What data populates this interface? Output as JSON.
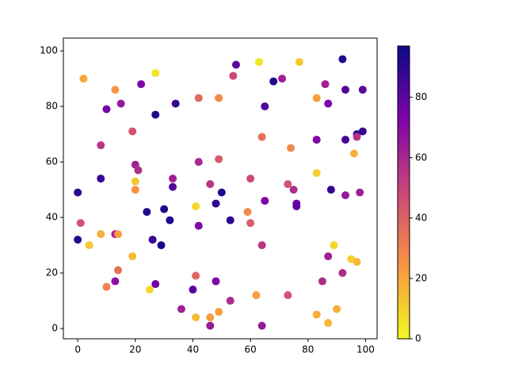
{
  "chart_data": {
    "type": "scatter",
    "x": [
      2,
      0,
      0,
      1,
      4,
      8,
      8,
      8,
      10,
      10,
      13,
      15,
      13,
      14,
      14,
      13,
      19,
      20,
      21,
      20,
      20,
      19,
      22,
      27,
      27,
      24,
      26,
      29,
      27,
      25,
      30,
      32,
      33,
      33,
      34,
      36,
      40,
      41,
      41,
      41,
      42,
      42,
      42,
      46,
      46,
      46,
      49,
      49,
      48,
      50,
      48,
      49,
      54,
      55,
      53,
      53,
      59,
      60,
      60,
      62,
      63,
      64,
      64,
      64,
      65,
      65,
      68,
      71,
      73,
      73,
      74,
      75,
      76,
      76,
      77,
      83,
      83,
      83,
      83,
      86,
      87,
      87,
      85,
      87,
      88,
      89,
      90,
      92,
      93,
      93,
      93,
      92,
      95,
      96,
      97,
      97,
      97,
      98,
      99,
      99
    ],
    "y": [
      90,
      49,
      32,
      38,
      30,
      34,
      54,
      66,
      79,
      15,
      86,
      81,
      34,
      34,
      21,
      17,
      71,
      59,
      57,
      53,
      50,
      26,
      88,
      92,
      77,
      42,
      32,
      30,
      16,
      14,
      43,
      39,
      54,
      51,
      81,
      7,
      14,
      44,
      19,
      4,
      83,
      60,
      37,
      52,
      1,
      4,
      83,
      61,
      45,
      49,
      17,
      6,
      91,
      95,
      39,
      10,
      42,
      54,
      38,
      12,
      96,
      69,
      30,
      1,
      80,
      46,
      89,
      90,
      52,
      12,
      65,
      50,
      45,
      44,
      96,
      83,
      68,
      56,
      5,
      88,
      81,
      26,
      17,
      2,
      50,
      30,
      7,
      97,
      86,
      68,
      48,
      20,
      25,
      63,
      70,
      69,
      24,
      49,
      86,
      71
    ],
    "c": [
      20,
      90,
      92,
      45,
      12,
      18,
      88,
      55,
      75,
      30,
      25,
      65,
      62,
      22,
      35,
      68,
      45,
      62,
      57,
      12,
      25,
      15,
      72,
      5,
      92,
      92,
      88,
      95,
      75,
      8,
      92,
      92,
      62,
      82,
      88,
      62,
      80,
      8,
      38,
      15,
      38,
      60,
      72,
      55,
      65,
      22,
      28,
      42,
      90,
      92,
      72,
      22,
      48,
      80,
      90,
      58,
      28,
      48,
      42,
      22,
      5,
      35,
      55,
      65,
      82,
      72,
      92,
      62,
      45,
      45,
      28,
      58,
      78,
      80,
      12,
      22,
      72,
      10,
      18,
      62,
      72,
      62,
      58,
      16,
      88,
      8,
      18,
      92,
      82,
      85,
      65,
      58,
      10,
      18,
      88,
      55,
      16,
      62,
      80,
      88
    ],
    "colors": [
      "#f0f921",
      "#f89540",
      "#cc4778",
      "#7e03a8",
      "#0d0887"
    ],
    "clim": [
      0,
      97
    ],
    "cticks": [
      0,
      20,
      40,
      60,
      80
    ],
    "xlim": [
      -5,
      104
    ],
    "ylim": [
      -3.7,
      104.6
    ],
    "xticks": [
      0,
      20,
      40,
      60,
      80,
      100
    ],
    "yticks": [
      0,
      20,
      40,
      60,
      80,
      100
    ]
  }
}
